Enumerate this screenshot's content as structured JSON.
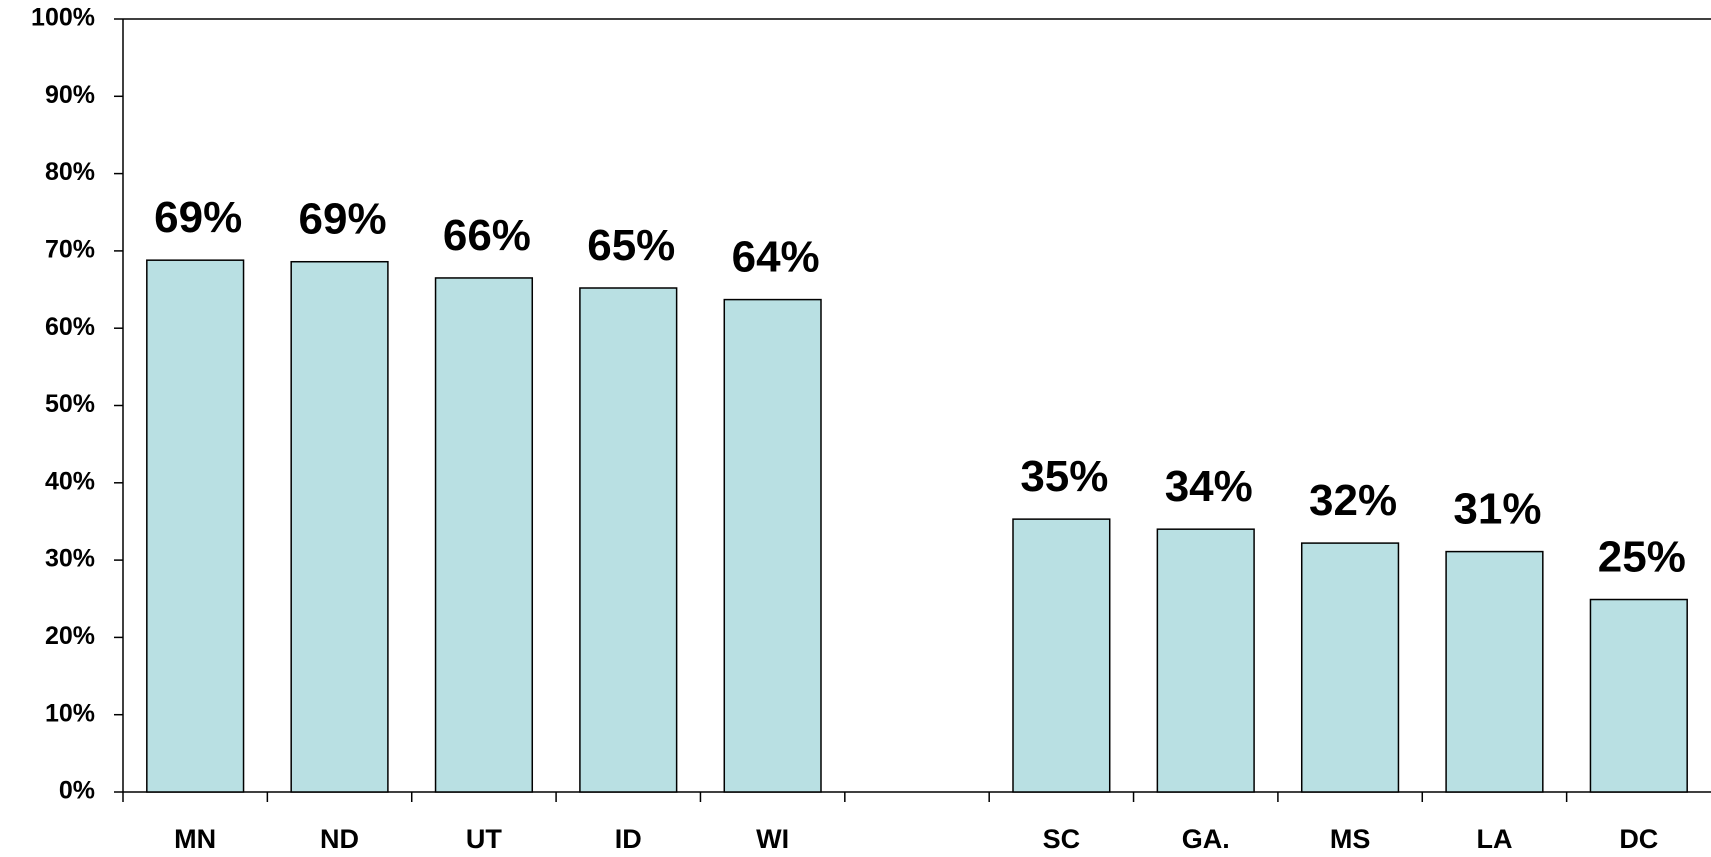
{
  "chart_data": {
    "type": "bar",
    "categories": [
      "MN",
      "ND",
      "UT",
      "ID",
      "WI",
      null,
      "SC",
      "GA.",
      "MS",
      "LA",
      "DC"
    ],
    "values": [
      68.8,
      68.6,
      66.5,
      65.2,
      63.7,
      null,
      35.3,
      34.0,
      32.2,
      31.1,
      24.9
    ],
    "value_labels": [
      "69%",
      "69%",
      "66%",
      "65%",
      "64%",
      null,
      "35%",
      "34%",
      "32%",
      "31%",
      "25%"
    ],
    "color": "#b9e0e3",
    "ylim": [
      0,
      100
    ],
    "yticks": [
      {
        "value": 0,
        "label": "0%"
      },
      {
        "value": 10,
        "label": "10%"
      },
      {
        "value": 20,
        "label": "20%"
      },
      {
        "value": 30,
        "label": "30%"
      },
      {
        "value": 40,
        "label": "40%"
      },
      {
        "value": 50,
        "label": "50%"
      },
      {
        "value": 60,
        "label": "60%"
      },
      {
        "value": 70,
        "label": "70%"
      },
      {
        "value": 80,
        "label": "80%"
      },
      {
        "value": 90,
        "label": "90%"
      },
      {
        "value": 100,
        "label": "100%"
      }
    ],
    "grid": false
  }
}
